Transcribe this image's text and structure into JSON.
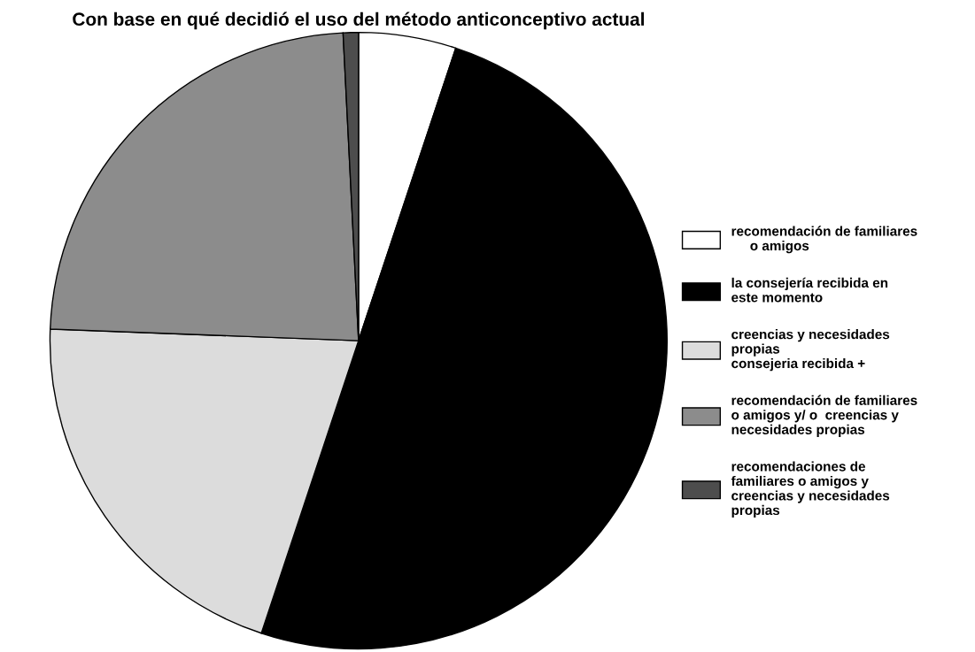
{
  "chart_data": {
    "type": "pie",
    "title": "Con base en qué decidió el uso del método anticonceptivo actual",
    "categories": [
      "recomendación de familiares\n     o amigos",
      "la consejería recibida en\neste momento",
      "creencias y necesidades\npropias\nconsejeria recibida +",
      "recomendación de familiares\no amigos y/ o  creencias y\nnecesidades propias",
      "recomendaciones de\nfamiliares o amigos y\ncreencias y necesidades\npropias"
    ],
    "values": [
      5.1,
      50,
      20.5,
      23.6,
      0.8
    ],
    "colors": [
      "#ffffff",
      "#000000",
      "#dcdcdc",
      "#8c8c8c",
      "#4d4d4d"
    ],
    "legend": "right"
  }
}
